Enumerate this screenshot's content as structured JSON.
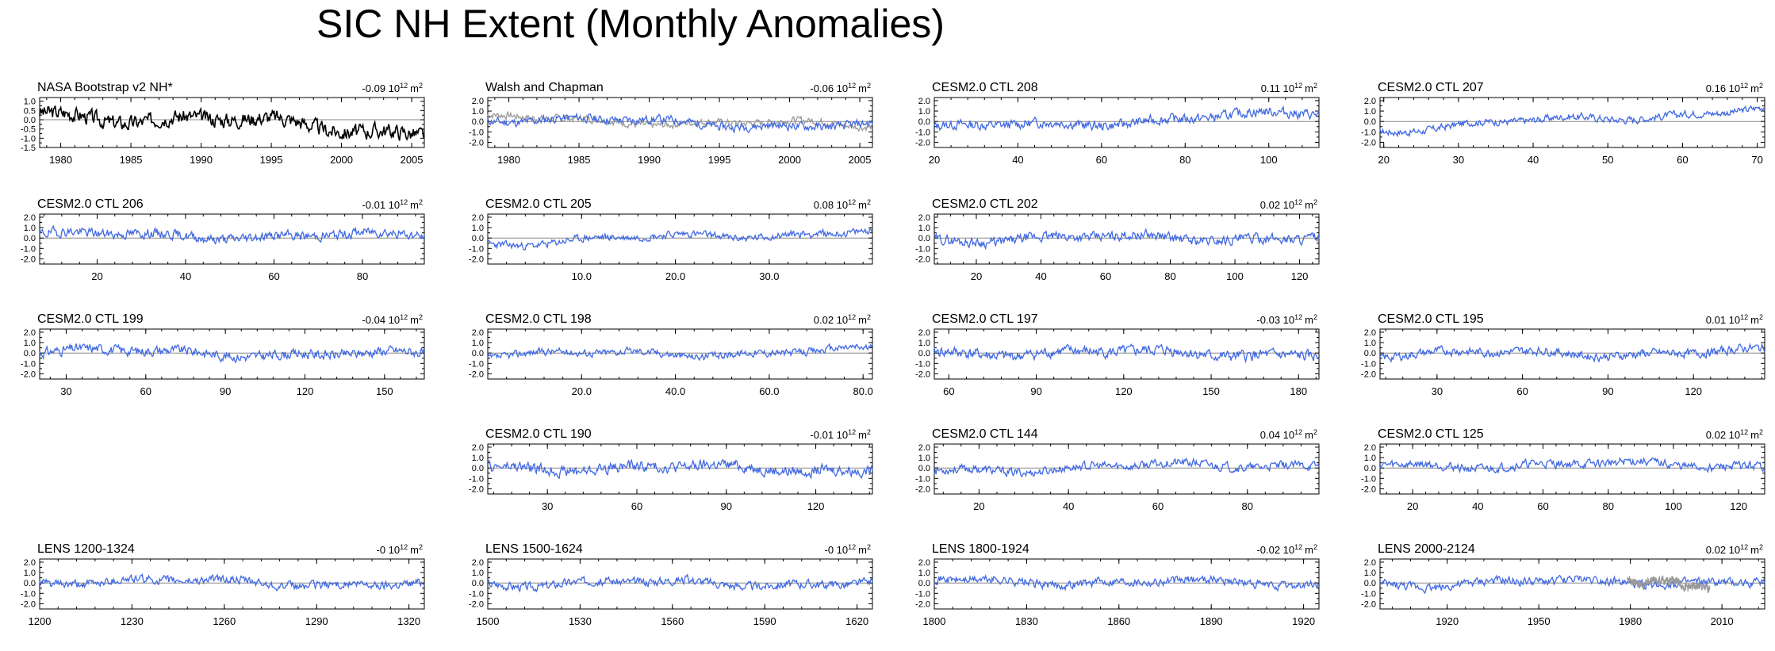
{
  "title": "SIC NH Extent (Monthly Anomalies)",
  "unit_label": "10",
  "unit_exp": "12",
  "unit_m": "m",
  "unit_sq": "2",
  "colors": {
    "obs": "#000000",
    "model": "#4169e1",
    "zero": "#888888",
    "overlay": "#999999"
  },
  "chart_data": [
    {
      "type": "line",
      "title": "NASA Bootstrap v2 NH*",
      "trend": "-0.09",
      "xlim": [
        1978.5,
        2005.9
      ],
      "ylim": [
        -1.5,
        1.2
      ],
      "yticks": [
        -1.5,
        -1.0,
        -0.5,
        0.0,
        0.5,
        1.0
      ],
      "ytick_labels": [
        "-1.5",
        "-1.0",
        "-0.5",
        "0.0",
        "0.5",
        "1.0"
      ],
      "xticks": [
        1980,
        1985,
        1990,
        1995,
        2000,
        2005
      ],
      "xtick_labels": [
        "1980",
        "1985",
        "1990",
        "1995",
        "2000",
        "2005"
      ],
      "series": [
        {
          "kind": "obs",
          "amp": 0.35,
          "trend_start": 0.4,
          "trend_end": -0.6,
          "seed": 3
        }
      ]
    },
    {
      "type": "line",
      "title": "Walsh and Chapman",
      "trend": "-0.06",
      "xlim": [
        1978.5,
        2005.9
      ],
      "ylim": [
        -2.5,
        2.3
      ],
      "yticks": [
        -2.0,
        -1.0,
        0.0,
        1.0,
        2.0
      ],
      "ytick_labels": [
        "-2.0",
        "-1.0",
        "0.0",
        "1.0",
        "2.0"
      ],
      "xticks": [
        1980,
        1985,
        1990,
        1995,
        2000,
        2005
      ],
      "xtick_labels": [
        "1980",
        "1985",
        "1990",
        "1995",
        "2000",
        "2005"
      ],
      "series": [
        {
          "kind": "overlay",
          "amp": 0.3,
          "trend_start": 0.3,
          "trend_end": -0.4,
          "seed": 7
        },
        {
          "kind": "model",
          "amp": 0.35,
          "trend_start": 0.3,
          "trend_end": -0.5,
          "seed": 11
        }
      ]
    },
    {
      "type": "line",
      "title": "CESM2.0 CTL 208",
      "trend": "0.11",
      "xlim": [
        20,
        112
      ],
      "ylim": [
        -2.5,
        2.3
      ],
      "yticks": [
        -2.0,
        -1.0,
        0.0,
        1.0,
        2.0
      ],
      "ytick_labels": [
        "-2.0",
        "-1.0",
        "0.0",
        "1.0",
        "2.0"
      ],
      "xticks": [
        20,
        40,
        60,
        80,
        100
      ],
      "xtick_labels": [
        "20",
        "40",
        "60",
        "80",
        "100"
      ],
      "series": [
        {
          "kind": "model",
          "amp": 0.4,
          "trend_start": -0.7,
          "trend_end": 0.8,
          "seed": 13
        }
      ]
    },
    {
      "type": "line",
      "title": "CESM2.0 CTL 207",
      "trend": "0.16",
      "xlim": [
        19.5,
        71
      ],
      "ylim": [
        -2.5,
        2.3
      ],
      "yticks": [
        -2.0,
        -1.0,
        0.0,
        1.0,
        2.0
      ],
      "ytick_labels": [
        "-2.0",
        "-1.0",
        "0.0",
        "1.0",
        "2.0"
      ],
      "xticks": [
        20,
        30,
        40,
        50,
        60,
        70
      ],
      "xtick_labels": [
        "20",
        "30",
        "40",
        "50",
        "60",
        "70"
      ],
      "series": [
        {
          "kind": "model",
          "amp": 0.3,
          "trend_start": -0.8,
          "trend_end": 1.2,
          "seed": 17
        }
      ]
    },
    {
      "type": "line",
      "title": "CESM2.0 CTL 206",
      "trend": "-0.01",
      "xlim": [
        7,
        94
      ],
      "ylim": [
        -2.5,
        2.3
      ],
      "yticks": [
        -2.0,
        -1.0,
        0.0,
        1.0,
        2.0
      ],
      "ytick_labels": [
        "-2.0",
        "-1.0",
        "0.0",
        "1.0",
        "2.0"
      ],
      "xticks": [
        20,
        40,
        60,
        80
      ],
      "xtick_labels": [
        "20",
        "40",
        "60",
        "80"
      ],
      "series": [
        {
          "kind": "model",
          "amp": 0.4,
          "trend_start": 0.3,
          "trend_end": 0.2,
          "seed": 19
        }
      ]
    },
    {
      "type": "line",
      "title": "CESM2.0 CTL 205",
      "trend": "0.08",
      "xlim": [
        0,
        41
      ],
      "ylim": [
        -2.5,
        2.3
      ],
      "yticks": [
        -2.0,
        -1.0,
        0.0,
        1.0,
        2.0
      ],
      "ytick_labels": [
        "-2.0",
        "-1.0",
        "0.0",
        "1.0",
        "2.0"
      ],
      "xticks": [
        10,
        20,
        30
      ],
      "xtick_labels": [
        "10.0",
        "20.0",
        "30.0"
      ],
      "series": [
        {
          "kind": "model",
          "amp": 0.3,
          "trend_start": -0.5,
          "trend_end": 0.7,
          "seed": 23
        }
      ]
    },
    {
      "type": "line",
      "title": "CESM2.0 CTL 202",
      "trend": "0.02",
      "xlim": [
        7,
        126
      ],
      "ylim": [
        -2.5,
        2.3
      ],
      "yticks": [
        -2.0,
        -1.0,
        0.0,
        1.0,
        2.0
      ],
      "ytick_labels": [
        "-2.0",
        "-1.0",
        "0.0",
        "1.0",
        "2.0"
      ],
      "xticks": [
        20,
        40,
        60,
        80,
        100,
        120
      ],
      "xtick_labels": [
        "20",
        "40",
        "60",
        "80",
        "100",
        "120"
      ],
      "series": [
        {
          "kind": "model",
          "amp": 0.4,
          "trend_start": -0.1,
          "trend_end": 0.1,
          "seed": 29
        }
      ]
    },
    null,
    {
      "type": "line",
      "title": "CESM2.0 CTL 199",
      "trend": "-0.04",
      "xlim": [
        20,
        165
      ],
      "ylim": [
        -2.5,
        2.3
      ],
      "yticks": [
        -2.0,
        -1.0,
        0.0,
        1.0,
        2.0
      ],
      "ytick_labels": [
        "-2.0",
        "-1.0",
        "0.0",
        "1.0",
        "2.0"
      ],
      "xticks": [
        30,
        60,
        90,
        120,
        150
      ],
      "xtick_labels": [
        "30",
        "60",
        "90",
        "120",
        "150"
      ],
      "series": [
        {
          "kind": "model",
          "amp": 0.4,
          "trend_start": 0.2,
          "trend_end": -0.2,
          "seed": 31
        }
      ]
    },
    {
      "type": "line",
      "title": "CESM2.0 CTL 198",
      "trend": "0.02",
      "xlim": [
        0,
        82
      ],
      "ylim": [
        -2.5,
        2.3
      ],
      "yticks": [
        -2.0,
        -1.0,
        0.0,
        1.0,
        2.0
      ],
      "ytick_labels": [
        "-2.0",
        "-1.0",
        "0.0",
        "1.0",
        "2.0"
      ],
      "xticks": [
        20,
        40,
        60,
        80
      ],
      "xtick_labels": [
        "20.0",
        "40.0",
        "60.0",
        "80.0"
      ],
      "series": [
        {
          "kind": "model",
          "amp": 0.3,
          "trend_start": -0.2,
          "trend_end": 0.2,
          "seed": 37
        }
      ]
    },
    {
      "type": "line",
      "title": "CESM2.0 CTL 197",
      "trend": "-0.03",
      "xlim": [
        55,
        187
      ],
      "ylim": [
        -2.5,
        2.3
      ],
      "yticks": [
        -2.0,
        -1.0,
        0.0,
        1.0,
        2.0
      ],
      "ytick_labels": [
        "-2.0",
        "-1.0",
        "0.0",
        "1.0",
        "2.0"
      ],
      "xticks": [
        60,
        90,
        120,
        150,
        180
      ],
      "xtick_labels": [
        "60",
        "90",
        "120",
        "150",
        "180"
      ],
      "series": [
        {
          "kind": "model",
          "amp": 0.45,
          "trend_start": 0.1,
          "trend_end": -0.1,
          "seed": 41
        }
      ]
    },
    {
      "type": "line",
      "title": "CESM2.0 CTL 195",
      "trend": "0.01",
      "xlim": [
        10,
        145
      ],
      "ylim": [
        -2.5,
        2.3
      ],
      "yticks": [
        -2.0,
        -1.0,
        0.0,
        1.0,
        2.0
      ],
      "ytick_labels": [
        "-2.0",
        "-1.0",
        "0.0",
        "1.0",
        "2.0"
      ],
      "xticks": [
        30,
        60,
        90,
        120
      ],
      "xtick_labels": [
        "30",
        "60",
        "90",
        "120"
      ],
      "series": [
        {
          "kind": "model",
          "amp": 0.35,
          "trend_start": -0.1,
          "trend_end": 0.1,
          "seed": 43
        }
      ]
    },
    null,
    {
      "type": "line",
      "title": "CESM2.0 CTL 190",
      "trend": "-0.01",
      "xlim": [
        10,
        139
      ],
      "ylim": [
        -2.5,
        2.3
      ],
      "yticks": [
        -2.0,
        -1.0,
        0.0,
        1.0,
        2.0
      ],
      "ytick_labels": [
        "-2.0",
        "-1.0",
        "0.0",
        "1.0",
        "2.0"
      ],
      "xticks": [
        30,
        60,
        90,
        120
      ],
      "xtick_labels": [
        "30",
        "60",
        "90",
        "120"
      ],
      "series": [
        {
          "kind": "model",
          "amp": 0.45,
          "trend_start": 0.1,
          "trend_end": -0.1,
          "seed": 47
        }
      ]
    },
    {
      "type": "line",
      "title": "CESM2.0 CTL 144",
      "trend": "0.04",
      "xlim": [
        10,
        96
      ],
      "ylim": [
        -2.5,
        2.3
      ],
      "yticks": [
        -2.0,
        -1.0,
        0.0,
        1.0,
        2.0
      ],
      "ytick_labels": [
        "-2.0",
        "-1.0",
        "0.0",
        "1.0",
        "2.0"
      ],
      "xticks": [
        20,
        40,
        60,
        80
      ],
      "xtick_labels": [
        "20",
        "40",
        "60",
        "80"
      ],
      "series": [
        {
          "kind": "model",
          "amp": 0.35,
          "trend_start": -0.2,
          "trend_end": 0.4,
          "seed": 53
        }
      ]
    },
    {
      "type": "line",
      "title": "CESM2.0 CTL 125",
      "trend": "0.02",
      "xlim": [
        10,
        128
      ],
      "ylim": [
        -2.5,
        2.3
      ],
      "yticks": [
        -2.0,
        -1.0,
        0.0,
        1.0,
        2.0
      ],
      "ytick_labels": [
        "-2.0",
        "-1.0",
        "0.0",
        "1.0",
        "2.0"
      ],
      "xticks": [
        20,
        40,
        60,
        80,
        100,
        120
      ],
      "xtick_labels": [
        "20",
        "40",
        "60",
        "80",
        "100",
        "120"
      ],
      "series": [
        {
          "kind": "model",
          "amp": 0.35,
          "trend_start": 0.3,
          "trend_end": 0.3,
          "seed": 59
        }
      ]
    },
    {
      "type": "line",
      "title": "LENS 1200-1324",
      "trend": "-0",
      "xlim": [
        1200,
        1325
      ],
      "ylim": [
        -2.5,
        2.3
      ],
      "yticks": [
        -2.0,
        -1.0,
        0.0,
        1.0,
        2.0
      ],
      "ytick_labels": [
        "-2.0",
        "-1.0",
        "0.0",
        "1.0",
        "2.0"
      ],
      "xticks": [
        1200,
        1230,
        1260,
        1290,
        1320
      ],
      "xtick_labels": [
        "1200",
        "1230",
        "1260",
        "1290",
        "1320"
      ],
      "series": [
        {
          "kind": "model",
          "amp": 0.35,
          "trend_start": 0.2,
          "trend_end": -0.1,
          "seed": 61
        }
      ]
    },
    {
      "type": "line",
      "title": "LENS 1500-1624",
      "trend": "-0",
      "xlim": [
        1500,
        1625
      ],
      "ylim": [
        -2.5,
        2.3
      ],
      "yticks": [
        -2.0,
        -1.0,
        0.0,
        1.0,
        2.0
      ],
      "ytick_labels": [
        "-2.0",
        "-1.0",
        "0.0",
        "1.0",
        "2.0"
      ],
      "xticks": [
        1500,
        1530,
        1560,
        1590,
        1620
      ],
      "xtick_labels": [
        "1500",
        "1530",
        "1560",
        "1590",
        "1620"
      ],
      "series": [
        {
          "kind": "model",
          "amp": 0.35,
          "trend_start": 0.0,
          "trend_end": 0.0,
          "seed": 67
        }
      ]
    },
    {
      "type": "line",
      "title": "LENS 1800-1924",
      "trend": "-0.02",
      "xlim": [
        1800,
        1925
      ],
      "ylim": [
        -2.5,
        2.3
      ],
      "yticks": [
        -2.0,
        -1.0,
        0.0,
        1.0,
        2.0
      ],
      "ytick_labels": [
        "-2.0",
        "-1.0",
        "0.0",
        "1.0",
        "2.0"
      ],
      "xticks": [
        1800,
        1830,
        1860,
        1890,
        1920
      ],
      "xtick_labels": [
        "1800",
        "1830",
        "1860",
        "1890",
        "1920"
      ],
      "series": [
        {
          "kind": "model",
          "amp": 0.35,
          "trend_start": 0.3,
          "trend_end": -0.1,
          "seed": 71
        }
      ]
    },
    {
      "type": "line",
      "title": "LENS 2000-2124",
      "trend": "0.02",
      "xlim": [
        1898,
        2024
      ],
      "ylim": [
        -2.5,
        2.3
      ],
      "yticks": [
        -2.0,
        -1.0,
        0.0,
        1.0,
        2.0
      ],
      "ytick_labels": [
        "-2.0",
        "-1.0",
        "0.0",
        "1.0",
        "2.0"
      ],
      "xticks": [
        1920,
        1950,
        1980,
        2010
      ],
      "xtick_labels": [
        "1920",
        "1950",
        "1980",
        "2010"
      ],
      "series": [
        {
          "kind": "model",
          "amp": 0.35,
          "trend_start": -0.1,
          "trend_end": 0.2,
          "seed": 73
        },
        {
          "kind": "overlay",
          "amp": 0.35,
          "trend_start": 0.3,
          "trend_end": -0.3,
          "seed": 79,
          "x_from": 1979,
          "x_to": 2006
        }
      ]
    }
  ]
}
